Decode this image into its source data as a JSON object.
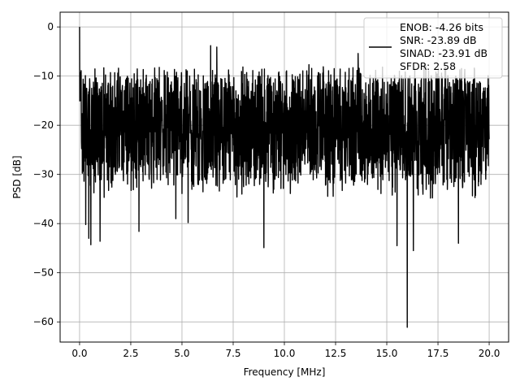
{
  "chart_data": {
    "type": "line",
    "title": "",
    "xlabel": "Frequency [MHz]",
    "ylabel": "PSD [dB]",
    "xlim": [
      -0.95,
      20.95
    ],
    "ylim": [
      -64.1,
      3.0
    ],
    "xticks": [
      0.0,
      2.5,
      5.0,
      7.5,
      10.0,
      12.5,
      15.0,
      17.5,
      20.0
    ],
    "xtick_labels": [
      "0.0",
      "2.5",
      "5.0",
      "7.5",
      "10.0",
      "12.5",
      "15.0",
      "17.5",
      "20.0"
    ],
    "yticks": [
      0,
      -10,
      -20,
      -30,
      -40,
      -50,
      -60
    ],
    "ytick_labels": [
      "0",
      "−10",
      "−20",
      "−30",
      "−40",
      "−50",
      "−60"
    ],
    "grid": true,
    "legend_position": "upper right",
    "legend_entries": [
      "ENOB: -4.26 bits",
      "SNR: -23.89 dB",
      "SINAD: -23.91 dB",
      "SFDR: 2.58"
    ],
    "series": [
      {
        "color": "#000000",
        "x_range": [
          0.0,
          20.0
        ],
        "style": "dense noise trace (upper envelope about -10 to -5 dB, lower envelope about -25 to -35 dB)",
        "peaks": [
          {
            "x": 0.0,
            "y": 0.0
          },
          {
            "x": 6.4,
            "y": -3.8
          },
          {
            "x": 6.7,
            "y": -4.1
          },
          {
            "x": 13.6,
            "y": -5.4
          }
        ],
        "dips": [
          {
            "x": 0.3,
            "y": -40.2
          },
          {
            "x": 0.45,
            "y": -43.0
          },
          {
            "x": 0.55,
            "y": -44.3
          },
          {
            "x": 1.0,
            "y": -43.6
          },
          {
            "x": 2.9,
            "y": -41.6
          },
          {
            "x": 4.7,
            "y": -39.0
          },
          {
            "x": 5.3,
            "y": -39.8
          },
          {
            "x": 9.0,
            "y": -44.9
          },
          {
            "x": 15.5,
            "y": -44.5
          },
          {
            "x": 16.0,
            "y": -61.1
          },
          {
            "x": 16.3,
            "y": -45.5
          },
          {
            "x": 18.5,
            "y": -44.0
          }
        ],
        "y_mean": -20.5
      }
    ]
  }
}
